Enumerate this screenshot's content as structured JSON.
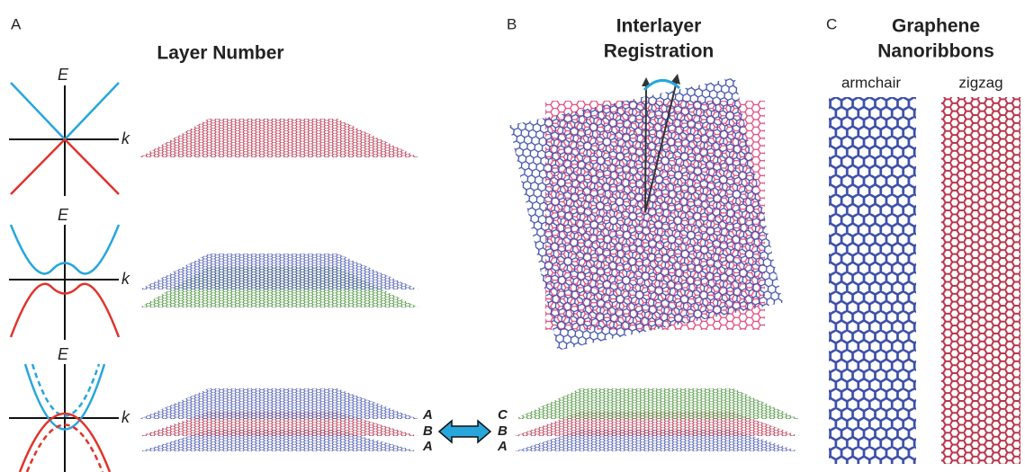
{
  "panels": [
    {
      "label": "A",
      "title": "Layer Number",
      "band_plots": [
        {
          "y_axis": "E",
          "x_axis": "k"
        },
        {
          "y_axis": "E",
          "x_axis": "k"
        },
        {
          "y_axis": "E",
          "x_axis": "k"
        }
      ],
      "stacking": [
        "A",
        "B",
        "A"
      ]
    },
    {
      "label": "B",
      "title": [
        "Interlayer",
        "Registration"
      ],
      "stacking": [
        "C",
        "B",
        "A"
      ]
    },
    {
      "label": "C",
      "title": [
        "Graphene",
        "Nanoribbons"
      ],
      "ribbons": [
        "armchair",
        "zigzag"
      ]
    }
  ]
}
